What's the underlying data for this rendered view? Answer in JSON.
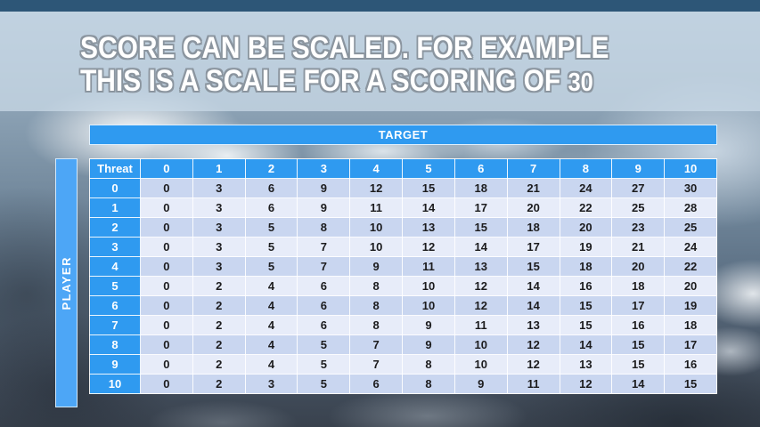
{
  "slide": {
    "title_line1": "SCORE CAN BE SCALED. FOR EXAMPLE",
    "title_line2": "THIS IS A SCALE FOR A SCORING OF",
    "title_line2_number": "30"
  },
  "colors": {
    "accent": "#2f9af0",
    "player_bar": "#4da6f6",
    "top_bar": "#2d5677",
    "row_even": "#c9d6f0",
    "row_odd": "#e7ecf9"
  },
  "table": {
    "target_label": "TARGET",
    "player_label": "PLAYER",
    "corner_label": "Threat",
    "column_headers": [
      "0",
      "1",
      "2",
      "3",
      "4",
      "5",
      "6",
      "7",
      "8",
      "9",
      "10"
    ],
    "rows": [
      {
        "label": "0",
        "values": [
          0,
          3,
          6,
          9,
          12,
          15,
          18,
          21,
          24,
          27,
          30
        ]
      },
      {
        "label": "1",
        "values": [
          0,
          3,
          6,
          9,
          11,
          14,
          17,
          20,
          22,
          25,
          28
        ]
      },
      {
        "label": "2",
        "values": [
          0,
          3,
          5,
          8,
          10,
          13,
          15,
          18,
          20,
          23,
          25
        ]
      },
      {
        "label": "3",
        "values": [
          0,
          3,
          5,
          7,
          10,
          12,
          14,
          17,
          19,
          21,
          24
        ]
      },
      {
        "label": "4",
        "values": [
          0,
          3,
          5,
          7,
          9,
          11,
          13,
          15,
          18,
          20,
          22
        ]
      },
      {
        "label": "5",
        "values": [
          0,
          2,
          4,
          6,
          8,
          10,
          12,
          14,
          16,
          18,
          20
        ]
      },
      {
        "label": "6",
        "values": [
          0,
          2,
          4,
          6,
          8,
          10,
          12,
          14,
          15,
          17,
          19
        ]
      },
      {
        "label": "7",
        "values": [
          0,
          2,
          4,
          6,
          8,
          9,
          11,
          13,
          15,
          16,
          18
        ]
      },
      {
        "label": "8",
        "values": [
          0,
          2,
          4,
          5,
          7,
          9,
          10,
          12,
          14,
          15,
          17
        ]
      },
      {
        "label": "9",
        "values": [
          0,
          2,
          4,
          5,
          7,
          8,
          10,
          12,
          13,
          15,
          16
        ]
      },
      {
        "label": "10",
        "values": [
          0,
          2,
          3,
          5,
          6,
          8,
          9,
          11,
          12,
          14,
          15
        ]
      }
    ]
  }
}
